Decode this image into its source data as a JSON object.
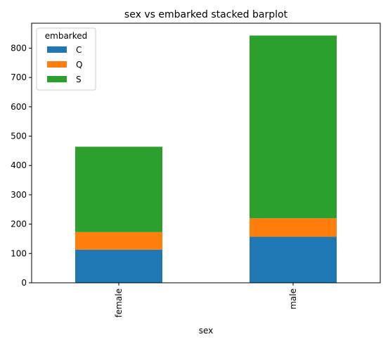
{
  "chart_data": {
    "type": "bar",
    "stacked": true,
    "title": "sex vs embarked stacked barplot",
    "xlabel": "sex",
    "ylabel": "",
    "categories": [
      "female",
      "male"
    ],
    "series": [
      {
        "name": "C",
        "values": [
          113,
          157
        ],
        "color": "#1f77b4"
      },
      {
        "name": "Q",
        "values": [
          60,
          63
        ],
        "color": "#ff7f0e"
      },
      {
        "name": "S",
        "values": [
          291,
          623
        ],
        "color": "#2ca02c"
      }
    ],
    "ylim": [
      0,
      885
    ],
    "yticks": [
      0,
      100,
      200,
      300,
      400,
      500,
      600,
      700,
      800
    ],
    "grid": false,
    "legend": {
      "title": "embarked",
      "placement": "top-left"
    }
  }
}
